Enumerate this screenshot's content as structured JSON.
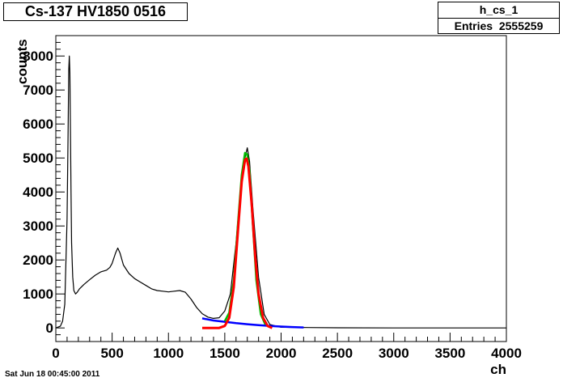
{
  "title": "Cs-137 HV1850 0516",
  "stats": {
    "name": "h_cs_1",
    "entries_label": "Entries",
    "entries_value": "2555259"
  },
  "date": "Sat Jun 18 00:45:00 2011",
  "chart_data": {
    "type": "line",
    "xlabel": "ch",
    "ylabel": "counts",
    "xlim": [
      0,
      4000
    ],
    "ylim": [
      -400,
      8600
    ],
    "x_ticks": [
      0,
      500,
      1000,
      1500,
      2000,
      2500,
      3000,
      3500,
      4000
    ],
    "y_ticks": [
      0,
      1000,
      2000,
      3000,
      4000,
      5000,
      6000,
      7000,
      8000
    ],
    "grid": false,
    "series": [
      {
        "color": "#000000",
        "style": "histogram",
        "x": [
          0,
          40,
          60,
          80,
          100,
          110,
          115,
          120,
          125,
          130,
          135,
          140,
          150,
          160,
          175,
          190,
          210,
          250,
          300,
          350,
          400,
          450,
          480,
          500,
          530,
          550,
          570,
          600,
          650,
          700,
          750,
          800,
          850,
          900,
          950,
          1000,
          1050,
          1100,
          1150,
          1200,
          1250,
          1300,
          1350,
          1400,
          1450,
          1500,
          1550,
          1600,
          1650,
          1680,
          1700,
          1720,
          1750,
          1800,
          1850,
          1900,
          2000,
          2500,
          3000,
          3500,
          4000
        ],
        "y": [
          0,
          50,
          200,
          700,
          3200,
          6000,
          7600,
          8000,
          7500,
          5800,
          4000,
          2500,
          1500,
          1100,
          1000,
          1050,
          1150,
          1280,
          1420,
          1550,
          1650,
          1700,
          1780,
          1900,
          2200,
          2350,
          2200,
          1850,
          1600,
          1450,
          1350,
          1250,
          1150,
          1100,
          1080,
          1060,
          1080,
          1100,
          1050,
          850,
          600,
          420,
          320,
          280,
          300,
          500,
          1000,
          2500,
          4500,
          5000,
          5300,
          4900,
          3500,
          1500,
          400,
          100,
          20,
          5,
          0,
          0,
          0
        ]
      },
      {
        "color": "#0000ff",
        "style": "fit",
        "x": [
          1300,
          1400,
          1500,
          1600,
          1700,
          1800,
          1900,
          2000,
          2100,
          2200
        ],
        "y": [
          280,
          220,
          180,
          140,
          110,
          80,
          60,
          40,
          25,
          15
        ]
      },
      {
        "color": "#00bb00",
        "style": "fit",
        "x": [
          1500,
          1540,
          1580,
          1620,
          1650,
          1680,
          1700,
          1720,
          1750,
          1780,
          1820,
          1860
        ],
        "y": [
          200,
          450,
          1400,
          3200,
          4500,
          5150,
          5100,
          4600,
          3000,
          1400,
          400,
          100
        ]
      },
      {
        "color": "#ff0000",
        "style": "fit",
        "x": [
          1300,
          1450,
          1500,
          1540,
          1580,
          1620,
          1650,
          1680,
          1695,
          1710,
          1740,
          1770,
          1800,
          1840,
          1880,
          1920
        ],
        "y": [
          0,
          0,
          60,
          300,
          1200,
          3000,
          4300,
          4950,
          4980,
          4750,
          3600,
          2100,
          1000,
          300,
          60,
          0
        ]
      }
    ]
  }
}
